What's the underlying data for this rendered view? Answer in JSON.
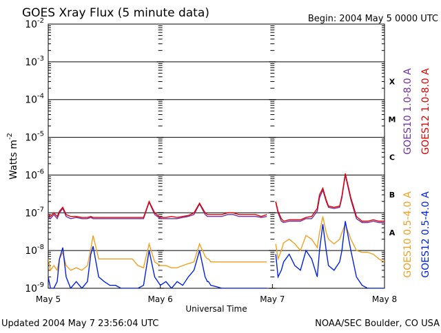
{
  "chart_data": {
    "type": "line",
    "title": "GOES Xray Flux (5 minute data)",
    "begin_label": "Begin:  2004 May 5 0000 UTC",
    "xlabel": "Universal Time",
    "ylabel": "Watts m",
    "ylabel_superscript": "-2",
    "y_scale": "log",
    "ylim": [
      1e-09,
      0.01
    ],
    "xlim_days": [
      0,
      3
    ],
    "x_ticks": [
      {
        "value": 0,
        "label": "May 5"
      },
      {
        "value": 1,
        "label": "May 6"
      },
      {
        "value": 2,
        "label": "May 7"
      },
      {
        "value": 3,
        "label": "May 8"
      }
    ],
    "y_ticks": [
      {
        "value": 1e-09,
        "base": "10",
        "exp": "-9"
      },
      {
        "value": 1e-08,
        "base": "10",
        "exp": "-8"
      },
      {
        "value": 1e-07,
        "base": "10",
        "exp": "-7"
      },
      {
        "value": 1e-06,
        "base": "10",
        "exp": "-6"
      },
      {
        "value": 1e-05,
        "base": "10",
        "exp": "-5"
      },
      {
        "value": 0.0001,
        "base": "10",
        "exp": "-4"
      },
      {
        "value": 0.001,
        "base": "10",
        "exp": "-3"
      },
      {
        "value": 0.01,
        "base": "10",
        "exp": "-2"
      }
    ],
    "flare_classes": [
      {
        "label": "X",
        "value": 0.0003
      },
      {
        "label": "M",
        "value": 3e-05
      },
      {
        "label": "C",
        "value": 3e-06
      },
      {
        "label": "B",
        "value": 3e-07
      },
      {
        "label": "A",
        "value": 3e-08
      }
    ],
    "grid": "horizontal at decades",
    "data_gaps_days": [
      [
        1.42,
        1.43
      ],
      [
        1.97,
        2.02
      ]
    ],
    "series": [
      {
        "name": "GOES10 1.0-8.0 A",
        "color": "#7030a0",
        "band": "long",
        "x": [
          0,
          0.02,
          0.05,
          0.08,
          0.1,
          0.13,
          0.16,
          0.2,
          0.25,
          0.3,
          0.35,
          0.38,
          0.4,
          0.45,
          0.5,
          0.55,
          0.6,
          0.65,
          0.7,
          0.75,
          0.8,
          0.85,
          0.9,
          0.95,
          1.0,
          1.05,
          1.1,
          1.15,
          1.2,
          1.25,
          1.3,
          1.35,
          1.4,
          1.42,
          1.43,
          1.45,
          1.5,
          1.55,
          1.6,
          1.65,
          1.7,
          1.75,
          1.8,
          1.85,
          1.9,
          1.95,
          1.97,
          2.02,
          2.03,
          2.05,
          2.08,
          2.1,
          2.15,
          2.2,
          2.25,
          2.3,
          2.35,
          2.4,
          2.42,
          2.45,
          2.48,
          2.5,
          2.55,
          2.6,
          2.62,
          2.65,
          2.7,
          2.75,
          2.8,
          2.85,
          2.9,
          2.95,
          3.0
        ],
        "y": [
          8e-08,
          7e-08,
          9e-08,
          7e-08,
          1e-07,
          1.3e-07,
          8e-08,
          7e-08,
          7.5e-08,
          7e-08,
          7e-08,
          7.5e-08,
          7e-08,
          7e-08,
          7e-08,
          7e-08,
          7e-08,
          7e-08,
          7e-08,
          7e-08,
          7e-08,
          7e-08,
          1.9e-07,
          9e-08,
          7e-08,
          7e-08,
          7e-08,
          7e-08,
          7.5e-08,
          8e-08,
          9e-08,
          1.7e-07,
          9e-08,
          8e-08,
          8e-08,
          8e-08,
          8e-08,
          8e-08,
          9e-08,
          9e-08,
          8e-08,
          8e-08,
          8e-08,
          8e-08,
          7.5e-08,
          8e-08,
          null,
          null,
          1.9e-07,
          1e-07,
          6e-08,
          5.5e-08,
          6e-08,
          6e-08,
          6e-08,
          7e-08,
          7e-08,
          1.1e-07,
          2.5e-07,
          4e-07,
          2e-07,
          1.4e-07,
          1.3e-07,
          1.4e-07,
          2.5e-07,
          1e-06,
          2.2e-07,
          7e-08,
          5.5e-08,
          5.5e-08,
          6e-08,
          5.5e-08,
          5.5e-08
        ]
      },
      {
        "name": "GOES12 1.0-8.0 A",
        "color": "#e00000",
        "band": "long",
        "x": [
          0,
          0.02,
          0.05,
          0.08,
          0.1,
          0.13,
          0.16,
          0.2,
          0.25,
          0.3,
          0.35,
          0.38,
          0.4,
          0.45,
          0.5,
          0.55,
          0.6,
          0.65,
          0.7,
          0.75,
          0.8,
          0.85,
          0.9,
          0.95,
          1.0,
          1.05,
          1.1,
          1.15,
          1.2,
          1.25,
          1.3,
          1.35,
          1.4,
          1.42,
          1.43,
          1.45,
          1.5,
          1.55,
          1.6,
          1.65,
          1.7,
          1.75,
          1.8,
          1.85,
          1.9,
          1.95,
          1.97,
          2.02,
          2.03,
          2.05,
          2.08,
          2.1,
          2.15,
          2.2,
          2.25,
          2.3,
          2.35,
          2.4,
          2.42,
          2.45,
          2.48,
          2.5,
          2.55,
          2.6,
          2.62,
          2.65,
          2.7,
          2.75,
          2.8,
          2.85,
          2.9,
          2.95,
          3.0
        ],
        "y": [
          9e-08,
          8e-08,
          1e-07,
          8e-08,
          1.1e-07,
          1.4e-07,
          9e-08,
          8e-08,
          8e-08,
          7.5e-08,
          7.5e-08,
          8e-08,
          7.5e-08,
          7.5e-08,
          7.5e-08,
          7.5e-08,
          7.5e-08,
          7.5e-08,
          7.5e-08,
          7.5e-08,
          7.5e-08,
          7.5e-08,
          2e-07,
          1e-07,
          7.5e-08,
          7.5e-08,
          8e-08,
          7.5e-08,
          8e-08,
          8.5e-08,
          1e-07,
          1.8e-07,
          1e-07,
          9e-08,
          9e-08,
          9e-08,
          9e-08,
          9e-08,
          1e-07,
          1e-07,
          9e-08,
          9e-08,
          9e-08,
          9e-08,
          8e-08,
          9e-08,
          null,
          null,
          2e-07,
          1.1e-07,
          7e-08,
          6e-08,
          6.5e-08,
          6.5e-08,
          6.5e-08,
          7.5e-08,
          8e-08,
          1.3e-07,
          3e-07,
          4.5e-07,
          2.2e-07,
          1.5e-07,
          1.4e-07,
          1.5e-07,
          2.8e-07,
          1.1e-06,
          2.5e-07,
          8e-08,
          6e-08,
          6e-08,
          6.5e-08,
          6e-08,
          6e-08
        ]
      },
      {
        "name": "GOES10 0.5-4.0 A",
        "color": "#f0a020",
        "band": "short",
        "x": [
          0,
          0.02,
          0.05,
          0.08,
          0.1,
          0.13,
          0.16,
          0.2,
          0.25,
          0.3,
          0.35,
          0.38,
          0.4,
          0.45,
          0.5,
          0.55,
          0.6,
          0.65,
          0.7,
          0.75,
          0.8,
          0.85,
          0.9,
          0.95,
          1.0,
          1.05,
          1.1,
          1.15,
          1.2,
          1.25,
          1.3,
          1.35,
          1.4,
          1.42,
          1.43,
          1.45,
          1.5,
          1.55,
          1.6,
          1.65,
          1.7,
          1.75,
          1.8,
          1.85,
          1.9,
          1.95,
          1.97,
          2.02,
          2.03,
          2.05,
          2.08,
          2.1,
          2.15,
          2.2,
          2.25,
          2.3,
          2.35,
          2.4,
          2.42,
          2.45,
          2.48,
          2.5,
          2.55,
          2.6,
          2.62,
          2.65,
          2.7,
          2.75,
          2.8,
          2.85,
          2.9,
          2.95,
          3.0
        ],
        "y": [
          6e-09,
          3e-09,
          4e-09,
          3e-09,
          6e-09,
          9e-09,
          4e-09,
          3e-09,
          3.5e-09,
          3e-09,
          4e-09,
          1.1e-08,
          2.5e-08,
          6e-09,
          6e-09,
          6e-09,
          6e-09,
          6e-09,
          6e-09,
          6e-09,
          4e-09,
          3.5e-09,
          1.5e-08,
          5e-09,
          4e-09,
          4e-09,
          3.5e-09,
          3.5e-09,
          4e-09,
          4.5e-09,
          5e-09,
          1.5e-08,
          7e-09,
          6e-09,
          6e-09,
          5e-09,
          5e-09,
          5e-09,
          5e-09,
          5e-09,
          5e-09,
          5e-09,
          5e-09,
          5e-09,
          5e-09,
          5e-09,
          null,
          null,
          1.5e-08,
          6e-09,
          1e-08,
          1.6e-08,
          2e-08,
          1.5e-08,
          1e-08,
          2.5e-08,
          2e-08,
          1.2e-08,
          3e-08,
          8e-08,
          3e-08,
          2e-08,
          1.5e-08,
          2e-08,
          3e-08,
          5e-08,
          2e-08,
          1e-08,
          9e-09,
          9e-09,
          8e-09,
          6e-09,
          5e-09
        ]
      },
      {
        "name": "GOES12 0.5-4.0 A",
        "color": "#0020e0",
        "band": "short",
        "x": [
          0,
          0.02,
          0.05,
          0.08,
          0.1,
          0.13,
          0.16,
          0.2,
          0.25,
          0.3,
          0.35,
          0.38,
          0.4,
          0.45,
          0.5,
          0.55,
          0.6,
          0.65,
          0.7,
          0.75,
          0.8,
          0.85,
          0.9,
          0.95,
          1.0,
          1.05,
          1.1,
          1.15,
          1.2,
          1.25,
          1.3,
          1.35,
          1.4,
          1.42,
          1.43,
          1.45,
          1.5,
          1.55,
          1.6,
          1.65,
          1.7,
          1.75,
          1.8,
          1.85,
          1.9,
          1.95,
          1.97,
          2.02,
          2.03,
          2.05,
          2.08,
          2.1,
          2.15,
          2.2,
          2.25,
          2.3,
          2.35,
          2.4,
          2.42,
          2.45,
          2.48,
          2.5,
          2.55,
          2.6,
          2.62,
          2.65,
          2.7,
          2.75,
          2.8,
          2.85,
          2.9,
          2.95,
          3.0
        ],
        "y": [
          2e-09,
          1e-09,
          1e-09,
          1.5e-09,
          6e-09,
          1.2e-08,
          2e-09,
          1e-09,
          1.5e-09,
          1e-09,
          1.5e-09,
          8e-09,
          1.3e-08,
          2e-09,
          1.5e-09,
          1.2e-09,
          1.2e-09,
          1e-09,
          1e-09,
          1e-09,
          1e-09,
          1.2e-09,
          1e-08,
          2e-09,
          1.2e-09,
          1.5e-09,
          1e-09,
          1.5e-09,
          1.2e-09,
          2e-09,
          3e-09,
          1e-08,
          2e-09,
          1.5e-09,
          1.5e-09,
          1.2e-09,
          1.1e-09,
          1e-09,
          1e-09,
          1e-09,
          1e-09,
          1e-09,
          1e-09,
          1e-09,
          1e-09,
          1e-09,
          null,
          null,
          8e-09,
          2e-09,
          3e-09,
          5e-09,
          8e-09,
          4e-09,
          3e-09,
          1e-08,
          6e-09,
          2e-09,
          1e-08,
          5e-08,
          1e-08,
          4e-09,
          3e-09,
          5e-09,
          1e-08,
          6e-08,
          1e-08,
          2e-09,
          1.2e-09,
          1e-09,
          1e-09,
          1e-09,
          1e-09
        ]
      }
    ]
  },
  "footer": {
    "updated": "Updated 2004 May  7 23:56:04 UTC",
    "credit": "NOAA/SEC Boulder, CO USA"
  }
}
